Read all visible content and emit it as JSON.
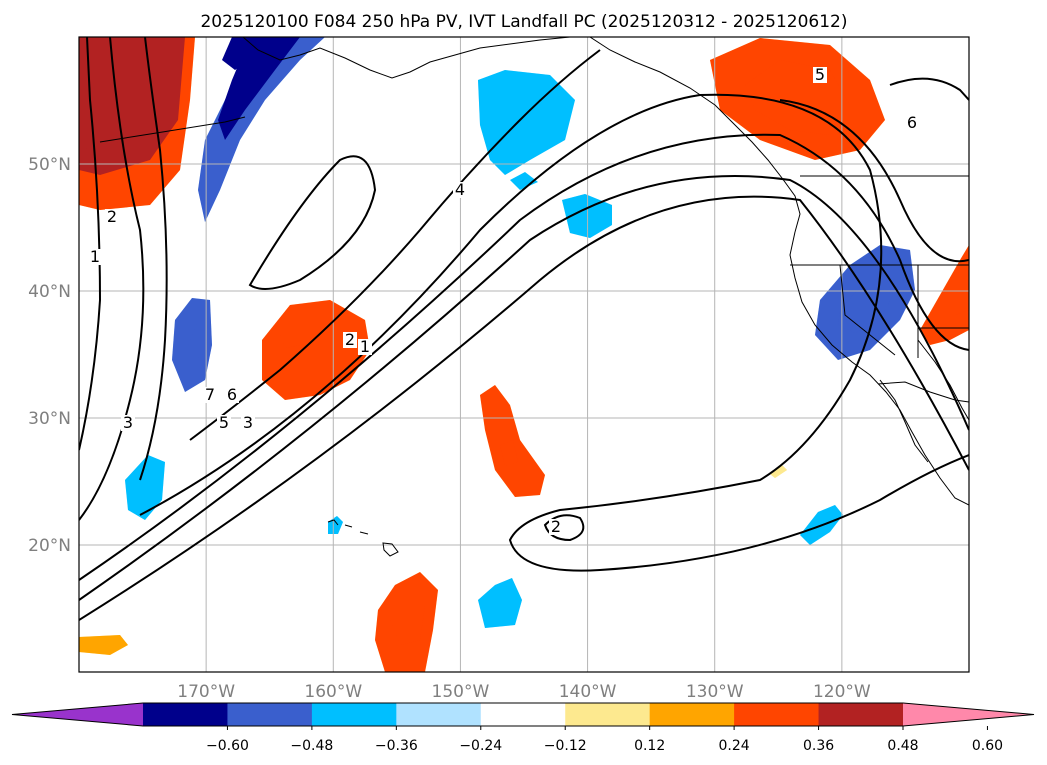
{
  "chart_data": {
    "type": "heatmap",
    "title": "2025120100 F084 250 hPa PV, IVT Landfall PC (2025120312 - 2025120612)",
    "map": {
      "lon_range": [
        -180,
        -110
      ],
      "lat_range": [
        10,
        60
      ],
      "lat_ticks": [
        {
          "value": 50,
          "label": "50°N"
        },
        {
          "value": 40,
          "label": "40°N"
        },
        {
          "value": 30,
          "label": "30°N"
        },
        {
          "value": 20,
          "label": "20°N"
        }
      ],
      "lon_ticks": [
        {
          "value": -170,
          "label": "170°W"
        },
        {
          "value": -160,
          "label": "160°W"
        },
        {
          "value": -150,
          "label": "150°W"
        },
        {
          "value": -140,
          "label": "140°W"
        },
        {
          "value": -130,
          "label": "130°W"
        },
        {
          "value": -120,
          "label": "120°W"
        }
      ],
      "grid": true
    },
    "colorbar": {
      "levels": [
        -0.72,
        -0.6,
        -0.48,
        -0.36,
        -0.24,
        -0.12,
        0.12,
        0.24,
        0.36,
        0.48,
        0.6,
        0.72
      ],
      "tick_labels": [
        "−0.60",
        "−0.48",
        "−0.36",
        "−0.24",
        "−0.12",
        "0.12",
        "0.24",
        "0.36",
        "0.48",
        "0.60"
      ],
      "colors": [
        "#9933cc",
        "#00008b",
        "#3a5fcd",
        "#00bfff",
        "#b0e2ff",
        "#ffffff",
        "#fde98f",
        "#ffa500",
        "#ff4500",
        "#b22222",
        "#ff88aa"
      ],
      "extend": "both"
    },
    "pc_regions": [
      {
        "name": "ne-pacific-high",
        "sign": "positive",
        "peak": 0.48,
        "center": [
          -125,
          53
        ]
      },
      {
        "name": "nw-corner-high",
        "sign": "positive",
        "peak": 0.6,
        "center": [
          -177,
          54
        ]
      },
      {
        "name": "central-high",
        "sign": "positive",
        "peak": 0.48,
        "center": [
          -161,
          34.5
        ]
      },
      {
        "name": "subtropical-high",
        "sign": "positive",
        "peak": 0.48,
        "center": [
          -146,
          28.5
        ]
      },
      {
        "name": "south-high",
        "sign": "positive",
        "peak": 0.48,
        "center": [
          -154,
          13.5
        ]
      },
      {
        "name": "east-edge-high",
        "sign": "positive",
        "peak": 0.48,
        "center": [
          -112,
          39
        ]
      },
      {
        "name": "sw-small-high",
        "sign": "positive",
        "peak": 0.36,
        "center": [
          -178,
          12
        ]
      },
      {
        "name": "baja-small-high",
        "sign": "positive",
        "peak": 0.24,
        "center": [
          -124.5,
          25.5
        ]
      },
      {
        "name": "north-low",
        "sign": "negative",
        "peak": -0.6,
        "center": [
          -166,
          55
        ]
      },
      {
        "name": "gulf-alaska-low",
        "sign": "negative",
        "peak": -0.36,
        "center": [
          -149,
          52
        ]
      },
      {
        "name": "small-low",
        "sign": "negative",
        "peak": -0.36,
        "center": [
          -140,
          46
        ]
      },
      {
        "name": "california-low",
        "sign": "negative",
        "peak": -0.48,
        "center": [
          -119,
          39.5
        ]
      },
      {
        "name": "west-low",
        "sign": "negative",
        "peak": -0.48,
        "center": [
          -170,
          36
        ]
      },
      {
        "name": "sw-low",
        "sign": "negative",
        "peak": -0.36,
        "center": [
          -175,
          25
        ]
      },
      {
        "name": "hawaii-low",
        "sign": "negative",
        "peak": -0.36,
        "center": [
          -160.5,
          21.5
        ]
      },
      {
        "name": "south-low",
        "sign": "negative",
        "peak": -0.36,
        "center": [
          -146,
          15
        ]
      },
      {
        "name": "mexico-low",
        "sign": "negative",
        "peak": -0.36,
        "center": [
          -120.5,
          22
        ]
      }
    ],
    "pv_contour_labels": [
      "2",
      "1",
      "3",
      "7",
      "6",
      "5",
      "3",
      "2",
      "1",
      "4",
      "5",
      "6",
      "2"
    ]
  }
}
